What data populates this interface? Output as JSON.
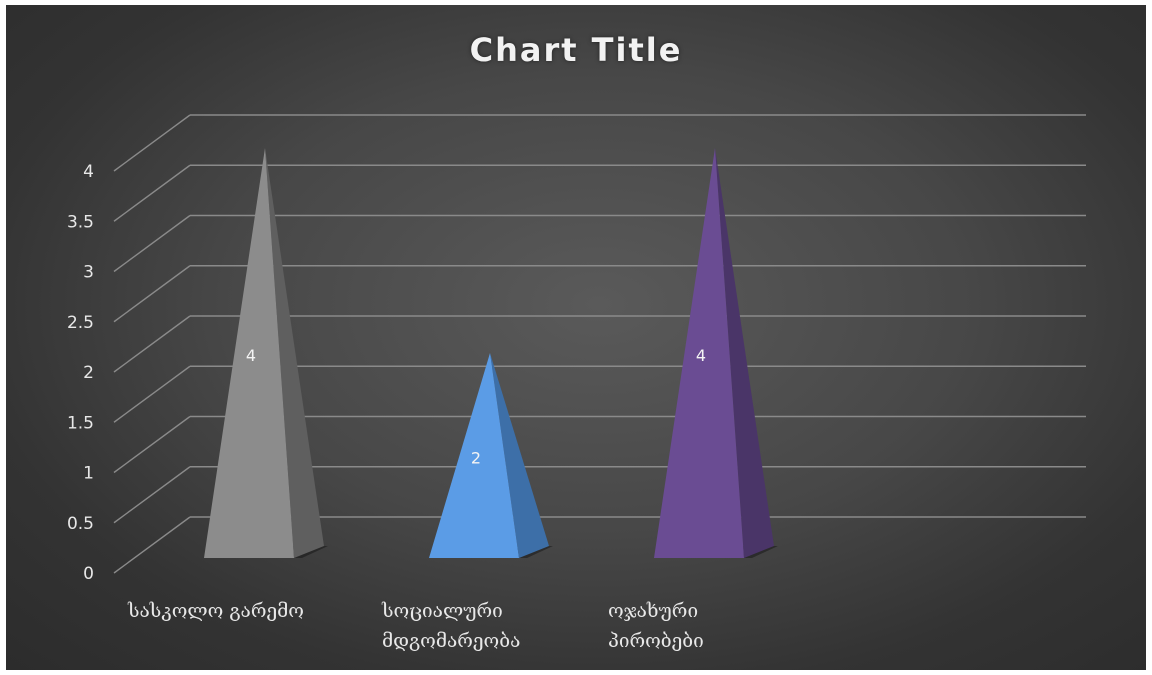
{
  "chart_data": {
    "type": "bar",
    "title": "Chart Title",
    "categories": [
      "სასკოლო გარემო",
      "სოციალური მდგომარეობა",
      "ოჯახური პირობები"
    ],
    "category_lines": [
      [
        "სასკოლო გარემო"
      ],
      [
        "სოციალური",
        "მდგომარეობა"
      ],
      [
        "ოჯახური",
        "პირობები"
      ]
    ],
    "values": [
      4,
      2,
      4
    ],
    "data_labels": [
      "4",
      "2",
      "4"
    ],
    "bar_colors": [
      "#8c8c8c",
      "#5b9ce6",
      "#6a4c93"
    ],
    "bar_shadow_colors": [
      "#5f5f5f",
      "#3d6fa8",
      "#4a3568"
    ],
    "ylim": [
      0,
      4
    ],
    "yticks": [
      "0",
      "0.5",
      "1",
      "1.5",
      "2",
      "2.5",
      "3",
      "3.5",
      "4"
    ],
    "xlabel": "",
    "ylabel": "",
    "grid": true,
    "legend": "none",
    "style": "3d-pyramid"
  }
}
